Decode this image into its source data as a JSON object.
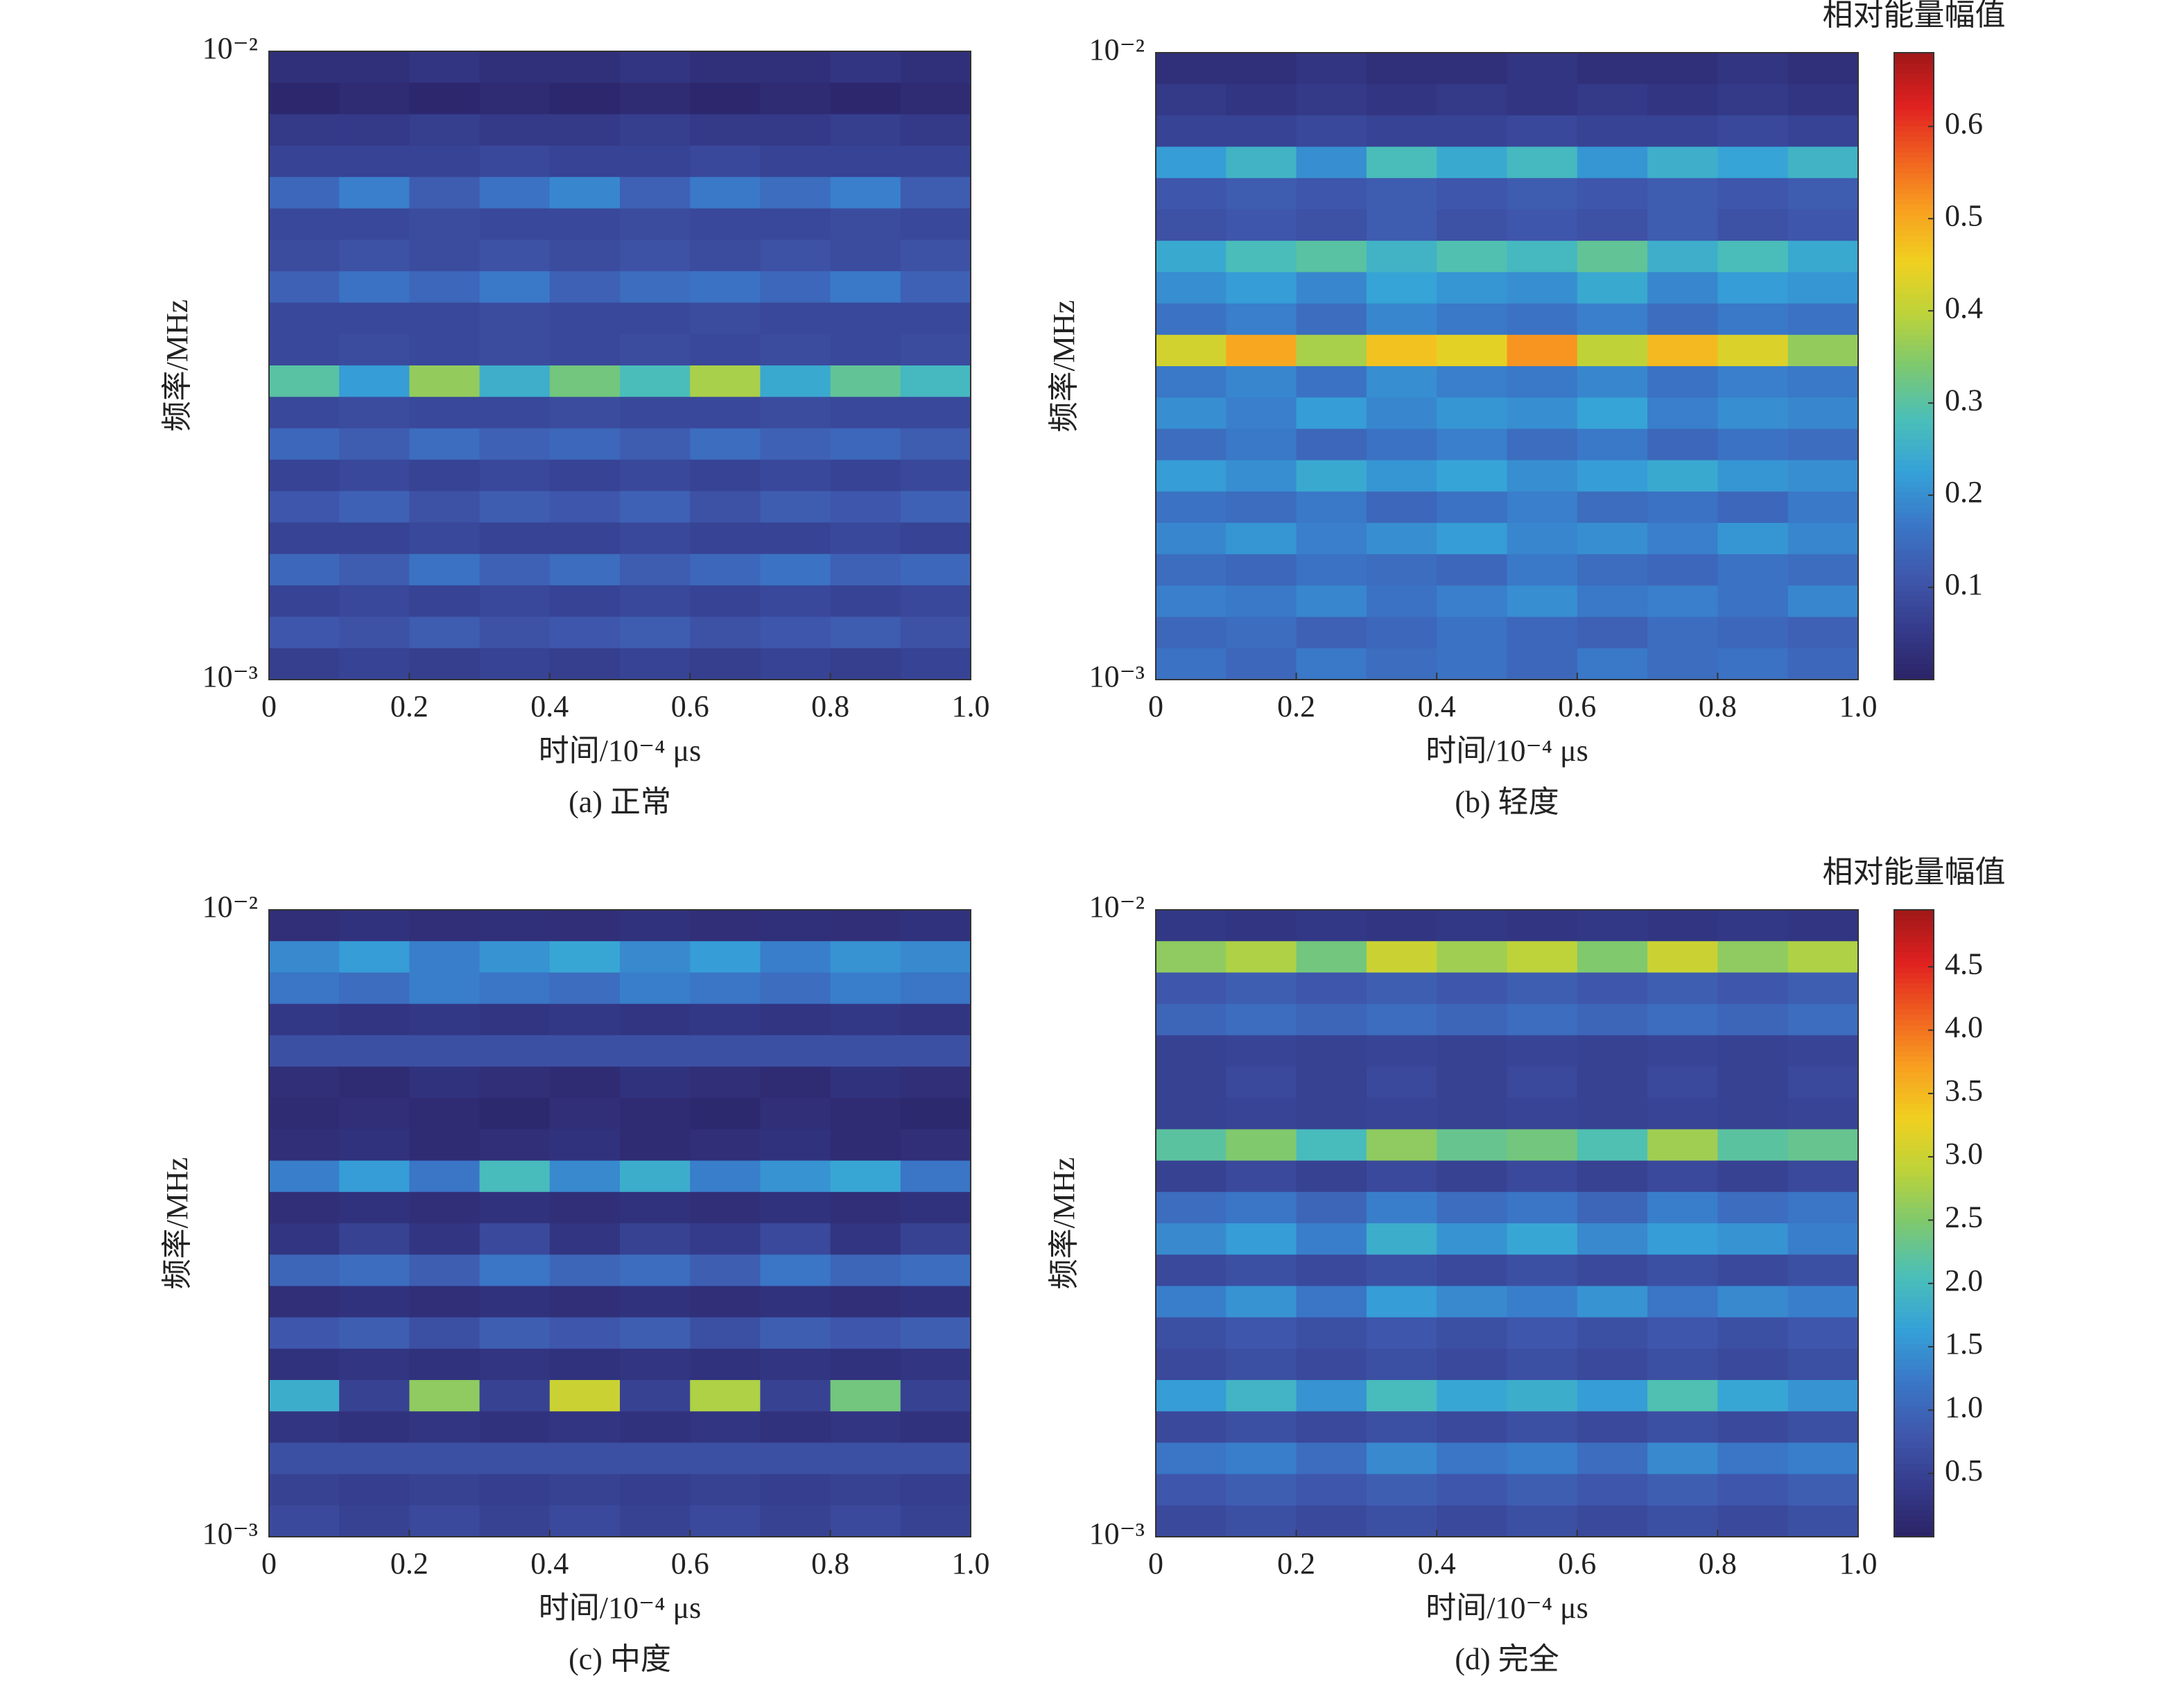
{
  "chart_data": [
    {
      "type": "heatmap",
      "caption": "(a) 正常",
      "xlabel": "时间/10⁻⁴ μs",
      "ylabel": "频率/MHz",
      "xlim": [
        0,
        1
      ],
      "xticks": [
        0,
        0.2,
        0.4,
        0.6,
        0.8,
        {
          "value": 1,
          "label": "1.0"
        }
      ],
      "ylim": [
        0.001,
        0.01
      ],
      "yticks": [
        {
          "value": 0.001,
          "label": "10⁻³"
        },
        {
          "value": 0.01,
          "label": "10⁻²"
        }
      ],
      "log_y": true,
      "z": [
        [
          0.03,
          0.03,
          0.04,
          0.03,
          0.03,
          0.04,
          0.03,
          0.03,
          0.04,
          0.03
        ],
        [
          0.01,
          0.02,
          0.01,
          0.02,
          0.01,
          0.02,
          0.01,
          0.02,
          0.01,
          0.02
        ],
        [
          0.05,
          0.05,
          0.06,
          0.05,
          0.05,
          0.06,
          0.05,
          0.05,
          0.06,
          0.05
        ],
        [
          0.07,
          0.07,
          0.07,
          0.08,
          0.07,
          0.07,
          0.08,
          0.07,
          0.07,
          0.07
        ],
        [
          0.14,
          0.18,
          0.12,
          0.16,
          0.19,
          0.13,
          0.17,
          0.15,
          0.18,
          0.12
        ],
        [
          0.08,
          0.08,
          0.09,
          0.08,
          0.08,
          0.09,
          0.08,
          0.08,
          0.09,
          0.08
        ],
        [
          0.09,
          0.1,
          0.09,
          0.1,
          0.09,
          0.1,
          0.09,
          0.1,
          0.09,
          0.1
        ],
        [
          0.13,
          0.16,
          0.14,
          0.17,
          0.13,
          0.15,
          0.16,
          0.14,
          0.17,
          0.13
        ],
        [
          0.08,
          0.08,
          0.08,
          0.09,
          0.08,
          0.08,
          0.09,
          0.08,
          0.08,
          0.08
        ],
        [
          0.08,
          0.09,
          0.08,
          0.09,
          0.08,
          0.09,
          0.08,
          0.09,
          0.08,
          0.09
        ],
        [
          0.3,
          0.22,
          0.36,
          0.25,
          0.33,
          0.28,
          0.38,
          0.24,
          0.31,
          0.27
        ],
        [
          0.08,
          0.09,
          0.08,
          0.08,
          0.09,
          0.08,
          0.08,
          0.09,
          0.08,
          0.08
        ],
        [
          0.14,
          0.12,
          0.15,
          0.13,
          0.14,
          0.12,
          0.15,
          0.13,
          0.14,
          0.12
        ],
        [
          0.07,
          0.08,
          0.07,
          0.08,
          0.07,
          0.08,
          0.07,
          0.08,
          0.07,
          0.08
        ],
        [
          0.11,
          0.13,
          0.1,
          0.12,
          0.11,
          0.13,
          0.1,
          0.12,
          0.11,
          0.13
        ],
        [
          0.07,
          0.07,
          0.08,
          0.07,
          0.07,
          0.08,
          0.07,
          0.07,
          0.08,
          0.07
        ],
        [
          0.14,
          0.12,
          0.16,
          0.13,
          0.15,
          0.12,
          0.14,
          0.16,
          0.13,
          0.14
        ],
        [
          0.07,
          0.08,
          0.07,
          0.08,
          0.07,
          0.08,
          0.07,
          0.08,
          0.07,
          0.08
        ],
        [
          0.11,
          0.1,
          0.12,
          0.1,
          0.11,
          0.12,
          0.1,
          0.11,
          0.12,
          0.1
        ],
        [
          0.06,
          0.07,
          0.06,
          0.07,
          0.06,
          0.07,
          0.06,
          0.07,
          0.06,
          0.07
        ]
      ]
    },
    {
      "type": "heatmap",
      "caption": "(b) 轻度",
      "xlabel": "时间/10⁻⁴ μs",
      "ylabel": "频率/MHz",
      "xlim": [
        0,
        1
      ],
      "xticks": [
        0,
        0.2,
        0.4,
        0.6,
        0.8,
        {
          "value": 1,
          "label": "1.0"
        }
      ],
      "ylim": [
        0.001,
        0.01
      ],
      "yticks": [
        {
          "value": 0.001,
          "label": "10⁻³"
        },
        {
          "value": 0.01,
          "label": "10⁻²"
        }
      ],
      "log_y": true,
      "colorbar": {
        "title": "相对能量幅值",
        "lim": [
          0,
          0.68
        ],
        "ticks": [
          0.1,
          0.2,
          0.3,
          0.4,
          0.5,
          0.6
        ],
        "colormap": [
          "#2b2366",
          "#353c8c",
          "#3f58ad",
          "#3a78c8",
          "#35a2d8",
          "#4bbfb8",
          "#7cc870",
          "#bcd33a",
          "#f0d020",
          "#f8a020",
          "#f06020",
          "#e02020",
          "#a01818"
        ]
      },
      "z": [
        [
          0.03,
          0.03,
          0.04,
          0.03,
          0.03,
          0.04,
          0.03,
          0.03,
          0.04,
          0.03
        ],
        [
          0.05,
          0.04,
          0.05,
          0.04,
          0.05,
          0.04,
          0.05,
          0.04,
          0.05,
          0.04
        ],
        [
          0.07,
          0.07,
          0.08,
          0.07,
          0.07,
          0.08,
          0.07,
          0.07,
          0.08,
          0.07
        ],
        [
          0.22,
          0.26,
          0.2,
          0.28,
          0.24,
          0.27,
          0.21,
          0.25,
          0.23,
          0.26
        ],
        [
          0.11,
          0.12,
          0.11,
          0.12,
          0.11,
          0.12,
          0.11,
          0.12,
          0.11,
          0.12
        ],
        [
          0.1,
          0.11,
          0.1,
          0.12,
          0.1,
          0.11,
          0.1,
          0.12,
          0.1,
          0.11
        ],
        [
          0.24,
          0.28,
          0.3,
          0.26,
          0.29,
          0.27,
          0.31,
          0.25,
          0.28,
          0.24
        ],
        [
          0.2,
          0.22,
          0.19,
          0.23,
          0.21,
          0.2,
          0.24,
          0.19,
          0.22,
          0.21
        ],
        [
          0.16,
          0.18,
          0.15,
          0.19,
          0.17,
          0.16,
          0.18,
          0.15,
          0.17,
          0.16
        ],
        [
          0.42,
          0.5,
          0.38,
          0.47,
          0.44,
          0.52,
          0.4,
          0.48,
          0.43,
          0.36
        ],
        [
          0.17,
          0.19,
          0.16,
          0.2,
          0.18,
          0.17,
          0.19,
          0.16,
          0.18,
          0.17
        ],
        [
          0.2,
          0.18,
          0.22,
          0.19,
          0.21,
          0.2,
          0.23,
          0.18,
          0.2,
          0.19
        ],
        [
          0.15,
          0.17,
          0.14,
          0.16,
          0.18,
          0.15,
          0.17,
          0.14,
          0.16,
          0.15
        ],
        [
          0.22,
          0.2,
          0.24,
          0.21,
          0.23,
          0.2,
          0.22,
          0.24,
          0.21,
          0.2
        ],
        [
          0.16,
          0.15,
          0.17,
          0.14,
          0.16,
          0.18,
          0.15,
          0.16,
          0.14,
          0.17
        ],
        [
          0.19,
          0.21,
          0.18,
          0.2,
          0.22,
          0.19,
          0.2,
          0.18,
          0.21,
          0.19
        ],
        [
          0.15,
          0.14,
          0.16,
          0.15,
          0.14,
          0.17,
          0.15,
          0.14,
          0.16,
          0.15
        ],
        [
          0.18,
          0.17,
          0.19,
          0.16,
          0.18,
          0.2,
          0.17,
          0.18,
          0.16,
          0.19
        ],
        [
          0.14,
          0.15,
          0.13,
          0.14,
          0.16,
          0.14,
          0.13,
          0.15,
          0.14,
          0.13
        ],
        [
          0.16,
          0.14,
          0.17,
          0.15,
          0.16,
          0.14,
          0.17,
          0.15,
          0.16,
          0.14
        ]
      ]
    },
    {
      "type": "heatmap",
      "caption": "(c) 中度",
      "xlabel": "时间/10⁻⁴ μs",
      "ylabel": "频率/MHz",
      "xlim": [
        0,
        1
      ],
      "xticks": [
        0,
        0.2,
        0.4,
        0.6,
        0.8,
        {
          "value": 1,
          "label": "1.0"
        }
      ],
      "ylim": [
        0.001,
        0.01
      ],
      "yticks": [
        {
          "value": 0.001,
          "label": "10⁻³"
        },
        {
          "value": 0.01,
          "label": "10⁻²"
        }
      ],
      "log_y": true,
      "z": [
        [
          0.2,
          0.25,
          0.2,
          0.22,
          0.2,
          0.25,
          0.2,
          0.22,
          0.2,
          0.25
        ],
        [
          1.4,
          1.6,
          1.3,
          1.5,
          1.7,
          1.4,
          1.6,
          1.3,
          1.5,
          1.4
        ],
        [
          1.2,
          1.1,
          1.3,
          1.2,
          1.1,
          1.3,
          1.2,
          1.1,
          1.3,
          1.2
        ],
        [
          0.35,
          0.3,
          0.35,
          0.3,
          0.35,
          0.3,
          0.35,
          0.3,
          0.35,
          0.3
        ],
        [
          0.7,
          0.7,
          0.7,
          0.7,
          0.7,
          0.7,
          0.7,
          0.7,
          0.7,
          0.7
        ],
        [
          0.2,
          0.15,
          0.25,
          0.2,
          0.15,
          0.25,
          0.2,
          0.15,
          0.25,
          0.2
        ],
        [
          0.15,
          0.2,
          0.15,
          0.1,
          0.2,
          0.15,
          0.1,
          0.2,
          0.15,
          0.1
        ],
        [
          0.2,
          0.25,
          0.15,
          0.2,
          0.25,
          0.15,
          0.2,
          0.25,
          0.15,
          0.2
        ],
        [
          1.3,
          1.6,
          1.2,
          2.0,
          1.4,
          1.8,
          1.3,
          1.5,
          1.7,
          1.2
        ],
        [
          0.2,
          0.25,
          0.2,
          0.25,
          0.2,
          0.25,
          0.2,
          0.25,
          0.2,
          0.25
        ],
        [
          0.3,
          0.5,
          0.3,
          0.6,
          0.3,
          0.5,
          0.4,
          0.6,
          0.3,
          0.5
        ],
        [
          1.0,
          1.1,
          0.9,
          1.2,
          1.0,
          1.1,
          0.9,
          1.2,
          1.0,
          1.1
        ],
        [
          0.2,
          0.25,
          0.2,
          0.25,
          0.2,
          0.25,
          0.2,
          0.25,
          0.2,
          0.25
        ],
        [
          0.8,
          0.9,
          0.7,
          0.9,
          0.8,
          0.9,
          0.7,
          0.9,
          0.8,
          0.9
        ],
        [
          0.25,
          0.3,
          0.25,
          0.3,
          0.25,
          0.3,
          0.25,
          0.3,
          0.25,
          0.3
        ],
        [
          1.8,
          0.5,
          2.6,
          0.5,
          3.0,
          0.5,
          2.8,
          0.5,
          2.4,
          0.5
        ],
        [
          0.3,
          0.25,
          0.3,
          0.25,
          0.3,
          0.25,
          0.3,
          0.25,
          0.3,
          0.25
        ],
        [
          0.7,
          0.7,
          0.7,
          0.7,
          0.7,
          0.7,
          0.7,
          0.7,
          0.7,
          0.7
        ],
        [
          0.5,
          0.45,
          0.5,
          0.45,
          0.5,
          0.45,
          0.5,
          0.45,
          0.5,
          0.45
        ],
        [
          0.6,
          0.5,
          0.6,
          0.5,
          0.6,
          0.5,
          0.6,
          0.5,
          0.6,
          0.5
        ]
      ]
    },
    {
      "type": "heatmap",
      "caption": "(d) 完全",
      "xlabel": "时间/10⁻⁴ μs",
      "ylabel": "频率/MHz",
      "xlim": [
        0,
        1
      ],
      "xticks": [
        0,
        0.2,
        0.4,
        0.6,
        0.8,
        {
          "value": 1,
          "label": "1.0"
        }
      ],
      "ylim": [
        0.001,
        0.01
      ],
      "yticks": [
        {
          "value": 0.001,
          "label": "10⁻³"
        },
        {
          "value": 0.01,
          "label": "10⁻²"
        }
      ],
      "log_y": true,
      "colorbar": {
        "title": "相对能量幅值",
        "lim": [
          0,
          4.95
        ],
        "ticks": [
          0.5,
          {
            "value": 1,
            "label": "1.0"
          },
          1.5,
          {
            "value": 2,
            "label": "2.0"
          },
          2.5,
          {
            "value": 3,
            "label": "3.0"
          },
          3.5,
          {
            "value": 4,
            "label": "4.0"
          },
          4.5
        ],
        "colormap": [
          "#2b2366",
          "#353c8c",
          "#3f58ad",
          "#3a78c8",
          "#35a2d8",
          "#4bbfb8",
          "#7cc870",
          "#bcd33a",
          "#f0d020",
          "#f8a020",
          "#f06020",
          "#e02020",
          "#a01818"
        ]
      },
      "z": [
        [
          0.35,
          0.3,
          0.35,
          0.3,
          0.35,
          0.3,
          0.35,
          0.3,
          0.35,
          0.3
        ],
        [
          2.6,
          2.8,
          2.4,
          3.0,
          2.7,
          2.9,
          2.5,
          3.0,
          2.6,
          2.8
        ],
        [
          0.8,
          0.9,
          0.8,
          0.9,
          0.8,
          0.9,
          0.8,
          0.9,
          0.8,
          0.9
        ],
        [
          1.0,
          1.1,
          1.0,
          1.1,
          1.0,
          1.1,
          1.0,
          1.1,
          1.0,
          1.1
        ],
        [
          0.5,
          0.55,
          0.5,
          0.55,
          0.5,
          0.55,
          0.5,
          0.55,
          0.5,
          0.55
        ],
        [
          0.5,
          0.6,
          0.5,
          0.6,
          0.5,
          0.6,
          0.5,
          0.6,
          0.5,
          0.6
        ],
        [
          0.5,
          0.55,
          0.5,
          0.55,
          0.5,
          0.55,
          0.5,
          0.55,
          0.5,
          0.55
        ],
        [
          2.2,
          2.5,
          2.0,
          2.6,
          2.3,
          2.4,
          2.1,
          2.7,
          2.2,
          2.3
        ],
        [
          0.5,
          0.6,
          0.5,
          0.6,
          0.5,
          0.6,
          0.5,
          0.6,
          0.5,
          0.6
        ],
        [
          1.1,
          1.2,
          1.0,
          1.3,
          1.1,
          1.2,
          1.0,
          1.3,
          1.1,
          1.2
        ],
        [
          1.4,
          1.6,
          1.3,
          1.8,
          1.5,
          1.7,
          1.4,
          1.6,
          1.5,
          1.3
        ],
        [
          0.6,
          0.7,
          0.6,
          0.7,
          0.6,
          0.7,
          0.6,
          0.7,
          0.6,
          0.7
        ],
        [
          1.3,
          1.5,
          1.2,
          1.6,
          1.4,
          1.3,
          1.5,
          1.2,
          1.4,
          1.3
        ],
        [
          0.7,
          0.8,
          0.7,
          0.8,
          0.7,
          0.8,
          0.7,
          0.8,
          0.7,
          0.8
        ],
        [
          0.6,
          0.7,
          0.6,
          0.7,
          0.6,
          0.7,
          0.6,
          0.7,
          0.6,
          0.7
        ],
        [
          1.6,
          1.9,
          1.5,
          2.0,
          1.7,
          1.8,
          1.6,
          2.1,
          1.7,
          1.5
        ],
        [
          0.6,
          0.7,
          0.6,
          0.7,
          0.6,
          0.7,
          0.6,
          0.7,
          0.6,
          0.7
        ],
        [
          1.2,
          1.3,
          1.1,
          1.4,
          1.2,
          1.3,
          1.1,
          1.4,
          1.2,
          1.3
        ],
        [
          0.8,
          0.9,
          0.8,
          0.9,
          0.8,
          0.9,
          0.8,
          0.9,
          0.8,
          0.9
        ],
        [
          0.6,
          0.7,
          0.6,
          0.7,
          0.6,
          0.7,
          0.6,
          0.7,
          0.6,
          0.7
        ]
      ]
    }
  ]
}
